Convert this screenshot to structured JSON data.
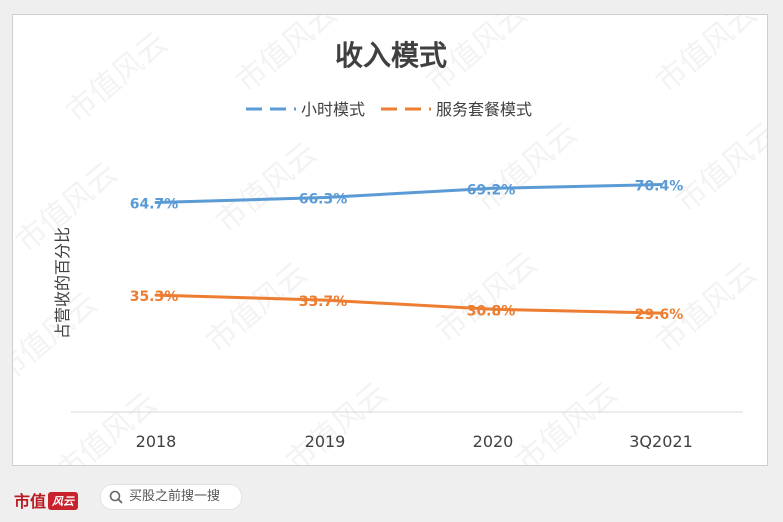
{
  "chart_data": {
    "type": "line",
    "title": "收入模式",
    "ylabel": "占营收的百分比",
    "xlabel": "",
    "categories": [
      "2018",
      "2019",
      "2020",
      "3Q2021"
    ],
    "ylim": [
      0,
      100
    ],
    "grid": false,
    "legend_position": "top",
    "series": [
      {
        "name": "小时模式",
        "values": [
          64.7,
          66.3,
          69.2,
          70.4
        ],
        "labels": [
          "64.7%",
          "66.3%",
          "69.2%",
          "70.4%"
        ],
        "color": "#5b9bd5"
      },
      {
        "name": "服务套餐模式",
        "values": [
          35.3,
          33.7,
          30.8,
          29.6
        ],
        "labels": [
          "35.3%",
          "33.7%",
          "30.8%",
          "29.6%"
        ],
        "color": "#ed7d31"
      }
    ]
  },
  "watermark": "市值风云",
  "footer": {
    "brand": "市值",
    "brand_mark": "风云",
    "search_icon": "search-icon",
    "search_text": "买股之前搜一搜"
  }
}
